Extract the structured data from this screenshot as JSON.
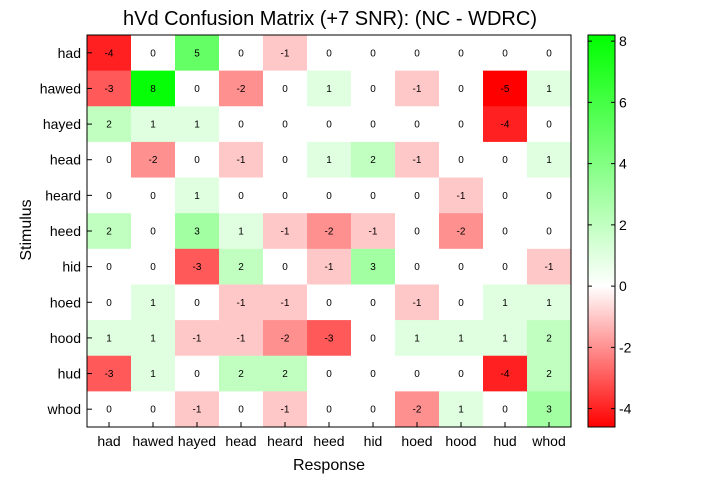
{
  "chart_data": {
    "type": "heatmap",
    "title": "hVd Confusion Matrix (+7 SNR): (NC - WDRC)",
    "xlabel": "Response",
    "ylabel": "Stimulus",
    "x_categories": [
      "had",
      "hawed",
      "hayed",
      "head",
      "heard",
      "heed",
      "hid",
      "hoed",
      "hood",
      "hud",
      "whod"
    ],
    "y_categories": [
      "had",
      "hawed",
      "hayed",
      "head",
      "heard",
      "heed",
      "hid",
      "hoed",
      "hood",
      "hud",
      "whod"
    ],
    "values": [
      [
        -4,
        0,
        5,
        0,
        -1,
        0,
        0,
        0,
        0,
        0,
        0
      ],
      [
        -3,
        8,
        0,
        -2,
        0,
        1,
        0,
        -1,
        0,
        -5,
        1
      ],
      [
        2,
        1,
        1,
        0,
        0,
        0,
        0,
        0,
        0,
        -4,
        0
      ],
      [
        0,
        -2,
        0,
        -1,
        0,
        1,
        2,
        -1,
        0,
        0,
        1
      ],
      [
        0,
        0,
        1,
        0,
        0,
        0,
        0,
        0,
        -1,
        0,
        0
      ],
      [
        2,
        0,
        3,
        1,
        -1,
        -2,
        -1,
        0,
        -2,
        0,
        0
      ],
      [
        0,
        0,
        -3,
        2,
        0,
        -1,
        3,
        0,
        0,
        0,
        -1
      ],
      [
        0,
        1,
        0,
        -1,
        -1,
        0,
        0,
        -1,
        0,
        1,
        1
      ],
      [
        1,
        1,
        -1,
        -1,
        -2,
        -3,
        0,
        1,
        1,
        1,
        2
      ],
      [
        -3,
        1,
        0,
        2,
        2,
        0,
        0,
        0,
        0,
        -4,
        2
      ],
      [
        0,
        0,
        -1,
        0,
        -1,
        0,
        0,
        -2,
        1,
        0,
        3
      ]
    ],
    "colorbar": {
      "range": [
        -4.6,
        8.2
      ],
      "ticks": [
        -4,
        -2,
        0,
        2,
        4,
        6,
        8
      ],
      "negative_color": "#ff0000",
      "zero_color": "#ffffff",
      "positive_color": "#00ff00"
    }
  }
}
